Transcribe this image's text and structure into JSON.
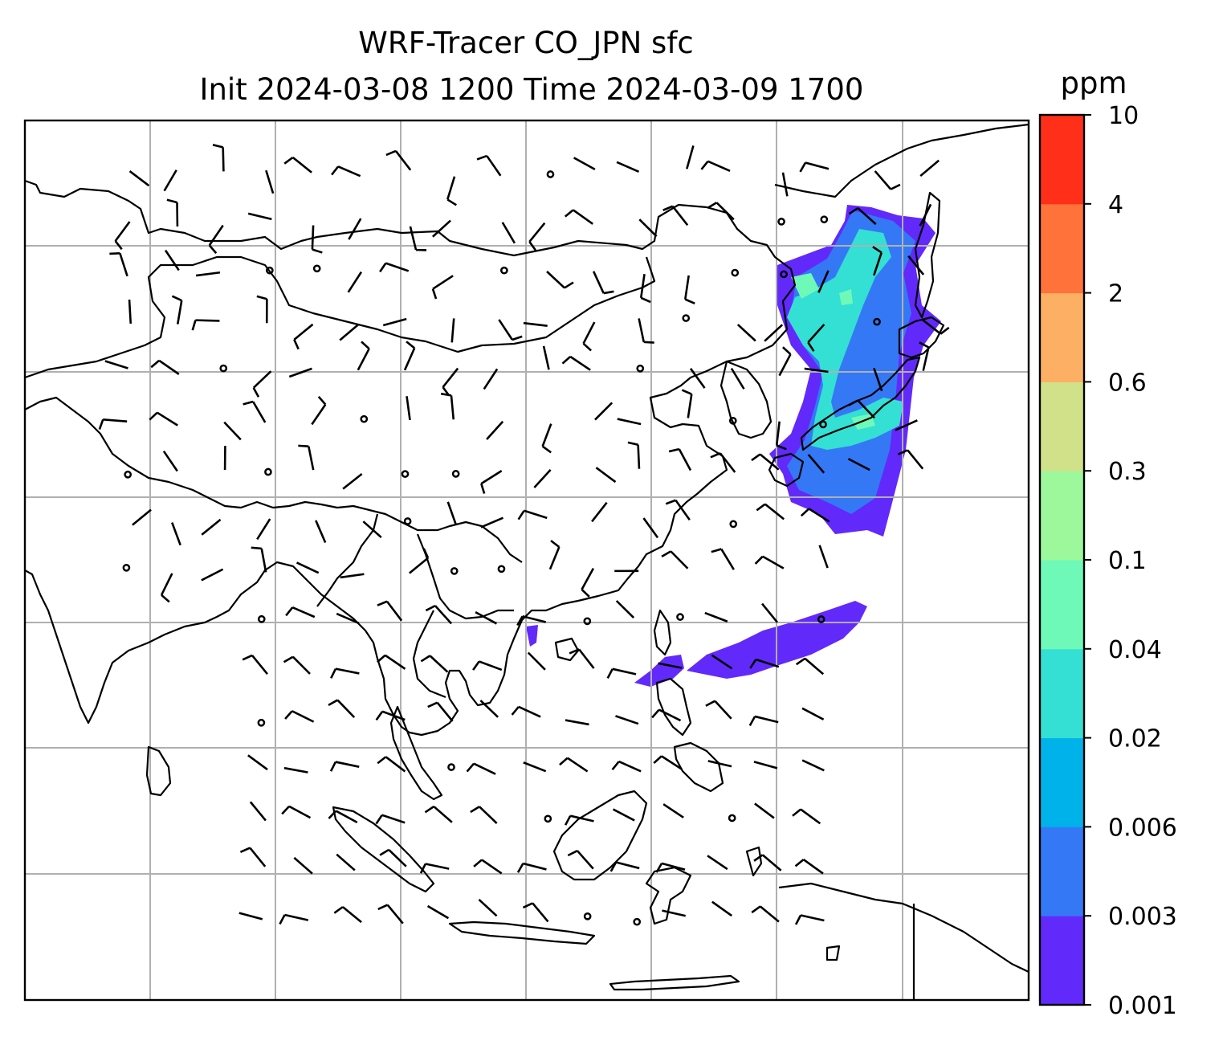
{
  "title": {
    "line1": "WRF-Tracer CO_JPN sfc",
    "line2": "Init 2024-03-08 1200 Time 2024-03-09 1700"
  },
  "colorbar": {
    "unit": "ppm",
    "ticks": [
      "0.001",
      "0.003",
      "0.006",
      "0.02",
      "0.04",
      "0.1",
      "0.3",
      "0.6",
      "2",
      "4",
      "10"
    ],
    "colors": [
      "#6229fb",
      "#3478f5",
      "#00b2ea",
      "#34dfd3",
      "#6ff9b8",
      "#9cf89a",
      "#d0e18a",
      "#fdb063",
      "#ff7239",
      "#ff2f19"
    ]
  },
  "plume": {
    "low_color": "#6229fb",
    "mid_color": "#3478f5",
    "high_color": "#34dfd3"
  },
  "map": {
    "coast_color": "#000000",
    "grid_color": "#b0b0b0"
  }
}
